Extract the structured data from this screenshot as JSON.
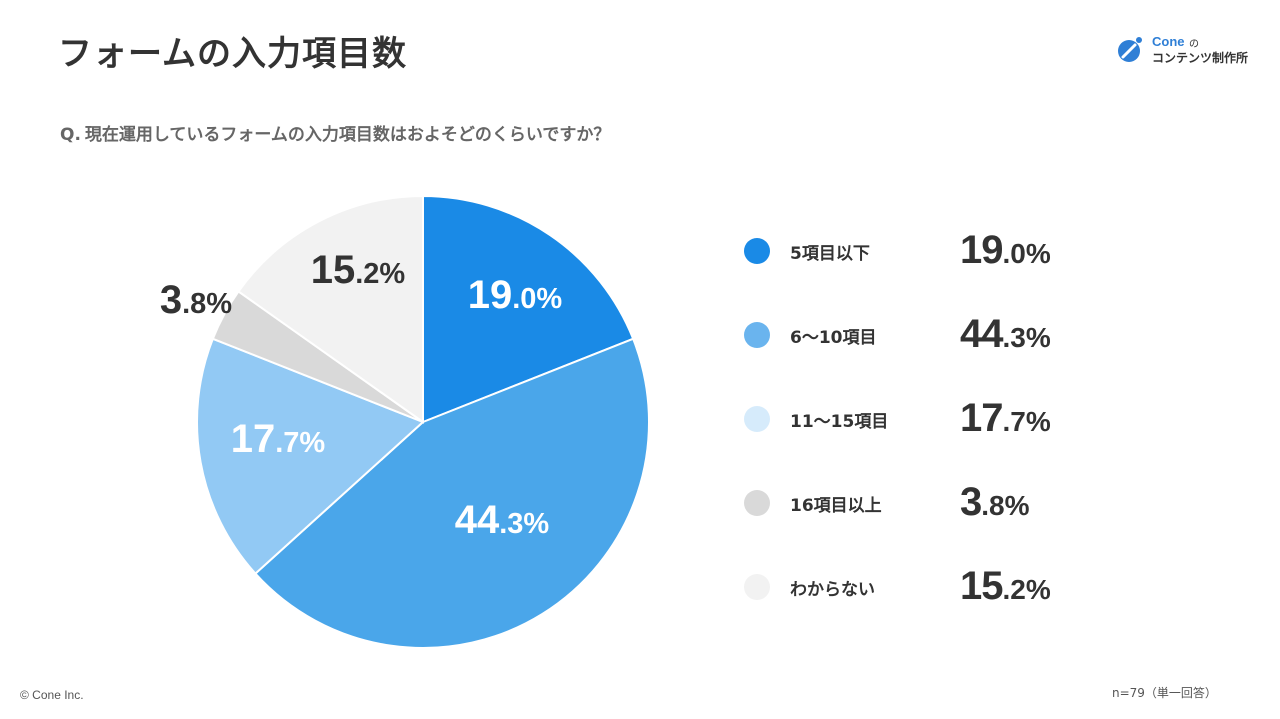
{
  "header": {
    "title": "フォームの入力項目数",
    "logo": {
      "name_en": "Cone",
      "name_no": "の",
      "name_jp": "コンテンツ制作所",
      "brand_color": "#2f7fd6"
    }
  },
  "question": {
    "prefix": "Q.",
    "text": "現在運用しているフォームの入力項目数はおよそどのくらいですか？"
  },
  "chart_data": {
    "type": "pie",
    "title": "",
    "slices": [
      {
        "label": "5項目以下",
        "value": 19.0,
        "big": "19",
        "small": ".0%",
        "color": "#1a8ae6",
        "text_color": "#ffffff"
      },
      {
        "label": "6〜10項目",
        "value": 44.3,
        "big": "44",
        "small": ".3%",
        "color": "#4aa6ea",
        "text_color": "#ffffff"
      },
      {
        "label": "11〜15項目",
        "value": 17.7,
        "big": "17",
        "small": ".7%",
        "color": "#92c9f4",
        "text_color": "#ffffff"
      },
      {
        "label": "16項目以上",
        "value": 3.8,
        "big": "3",
        "small": ".8%",
        "color": "#d9d9d9",
        "text_color": "#333333"
      },
      {
        "label": "わからない",
        "value": 15.2,
        "big": "15",
        "small": ".2%",
        "color": "#f2f2f2",
        "text_color": "#333333"
      }
    ],
    "legend_placement": "right"
  },
  "legend_dot_colors": [
    "#1a8ae6",
    "#6ab4ee",
    "#d6ebfb",
    "#d9d9d9",
    "#f2f2f2"
  ],
  "footer": {
    "copyright": "© Cone Inc.",
    "sample": "n=79（単一回答）"
  }
}
